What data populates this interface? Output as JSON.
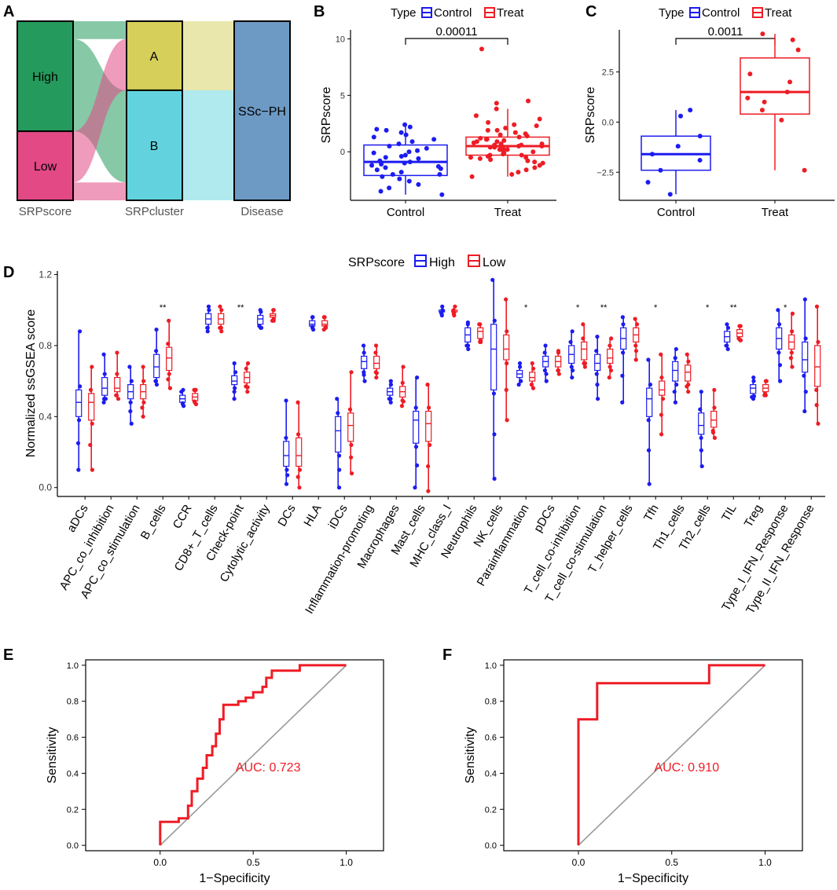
{
  "colors": {
    "blue": "#1c1cf0",
    "red": "#ee1c25",
    "high": "#249a5d",
    "low": "#e24985",
    "clusterA": "#d6cf5a",
    "clusterB": "#62d3de",
    "disease": "#6d9ac4",
    "axis": "#000000",
    "grey": "#9a9a9a",
    "label_grey": "#555555"
  },
  "chart_data": [
    {
      "panel": "A",
      "type": "alluvial",
      "axes": [
        "SRPscore",
        "SRPcluster",
        "Disease"
      ],
      "strata": {
        "SRPscore": [
          {
            "name": "High",
            "count": 43
          },
          {
            "name": "Low",
            "count": 27
          }
        ],
        "SRPcluster": [
          {
            "name": "A",
            "count": 27
          },
          {
            "name": "B",
            "count": 43
          }
        ],
        "Disease": [
          {
            "name": "SSc−PH",
            "count": 70
          }
        ]
      },
      "flows": [
        {
          "from": "High",
          "to": "A",
          "value": 7
        },
        {
          "from": "High",
          "to": "B",
          "value": 36
        },
        {
          "from": "Low",
          "to": "A",
          "value": 20
        },
        {
          "from": "Low",
          "to": "B",
          "value": 7
        }
      ]
    },
    {
      "panel": "B",
      "type": "boxplot",
      "legend_title": "Type",
      "groups": [
        "Control",
        "Treat"
      ],
      "ylabel": "SRPscore",
      "ylim": [
        -4.3,
        10.8
      ],
      "yticks": [
        0,
        5,
        10
      ],
      "pvalue": "0.00011",
      "boxes": [
        {
          "group": "Control",
          "min": -3.8,
          "q1": -2.1,
          "median": -0.9,
          "q3": 0.6,
          "max": 2.4
        },
        {
          "group": "Treat",
          "min": -2.2,
          "q1": -0.3,
          "median": 0.5,
          "q3": 1.3,
          "max": 3.8
        }
      ],
      "points": {
        "Control": [
          2.4,
          2.2,
          2.0,
          1.9,
          1.7,
          1.5,
          1.3,
          1.1,
          0.9,
          0.7,
          0.5,
          0.3,
          0.1,
          -0.1,
          -0.3,
          -0.5,
          -0.6,
          -0.8,
          -0.9,
          -1.0,
          -1.1,
          -1.2,
          -1.3,
          -1.5,
          -1.6,
          -1.8,
          -2.0,
          -2.2,
          -2.4,
          -2.6,
          -2.9,
          -3.2,
          -3.5,
          -3.8,
          -0.4,
          -1.4,
          0.0,
          -2.0
        ],
        "Treat": [
          9.1,
          4.5,
          4.3,
          3.8,
          3.2,
          2.9,
          2.6,
          2.3,
          2.1,
          1.9,
          1.7,
          1.5,
          1.4,
          1.3,
          1.2,
          1.1,
          1.0,
          0.9,
          0.8,
          0.7,
          0.6,
          0.5,
          0.5,
          0.4,
          0.3,
          0.2,
          0.1,
          0.0,
          -0.1,
          -0.2,
          -0.3,
          -0.4,
          -0.5,
          -0.6,
          -0.7,
          -0.8,
          -0.9,
          -1.0,
          -1.2,
          -1.4,
          -1.6,
          -1.8,
          -2.0,
          -2.2,
          0.6,
          0.9,
          1.1,
          0.2,
          -0.3,
          1.6,
          0.4,
          0.7,
          -0.5,
          1.9,
          2.4
        ]
      }
    },
    {
      "panel": "C",
      "type": "boxplot",
      "legend_title": "Type",
      "groups": [
        "Control",
        "Treat"
      ],
      "ylabel": "SRPscore",
      "ylim": [
        -3.9,
        4.6
      ],
      "yticks": [
        -2.5,
        0.0,
        2.5
      ],
      "yticklabels": [
        "−2.5",
        "0.0",
        "2.5"
      ],
      "pvalue": "0.0011",
      "boxes": [
        {
          "group": "Control",
          "min": -3.6,
          "q1": -2.4,
          "median": -1.6,
          "q3": -0.7,
          "max": 0.6
        },
        {
          "group": "Treat",
          "min": -2.4,
          "q1": 0.4,
          "median": 1.5,
          "q3": 3.2,
          "max": 4.4
        }
      ],
      "points": {
        "Control": [
          0.6,
          0.3,
          -0.7,
          -1.2,
          -1.6,
          -1.9,
          -2.4,
          -3.0,
          -3.6
        ],
        "Treat": [
          4.4,
          4.1,
          3.6,
          2.4,
          2.0,
          1.5,
          1.2,
          1.0,
          0.6,
          0.1,
          -2.4
        ]
      }
    },
    {
      "panel": "D",
      "type": "boxplot",
      "legend_title": "SRPscore",
      "legend": [
        "High",
        "Low"
      ],
      "ylabel": "Normalized ssGSEA score",
      "ylim": [
        -0.05,
        1.22
      ],
      "yticks": [
        0.0,
        0.4,
        0.8,
        1.2
      ],
      "yticklabels": [
        "0.0",
        "0.4",
        "0.8",
        "1.2"
      ],
      "categories": [
        "aDCs",
        "APC_co_inhibition",
        "APC_co_stimulation",
        "B_cells",
        "CCR",
        "CD8+_T_cells",
        "Check-point",
        "Cytolytic_activity",
        "DCs",
        "HLA",
        "iDCs",
        "Inflammation-promoting",
        "Macrophages",
        "Mast_cells",
        "MHC_class_I",
        "Neutrophils",
        "NK_cells",
        "Parainflammation",
        "pDCs",
        "T_cell_co-inhibition",
        "T_cell_co-stimulation",
        "T_helper_cells",
        "Tfh",
        "Th1_cells",
        "Th2_cells",
        "TIL",
        "Treg",
        "Type_I_IFN_Response",
        "Type_II_IFN_Response"
      ],
      "significance": [
        "",
        "",
        "",
        "**",
        "",
        "",
        "**",
        "",
        "",
        "",
        "",
        "",
        "",
        "",
        "",
        "",
        "",
        "*",
        "",
        "*",
        "**",
        "",
        "*",
        "",
        "*",
        "**",
        "",
        "*",
        ""
      ],
      "high": [
        [
          0.1,
          0.4,
          0.48,
          0.55,
          0.88
        ],
        [
          0.48,
          0.52,
          0.56,
          0.62,
          0.75
        ],
        [
          0.36,
          0.5,
          0.54,
          0.58,
          0.68
        ],
        [
          0.58,
          0.62,
          0.68,
          0.75,
          0.89
        ],
        [
          0.47,
          0.48,
          0.5,
          0.52,
          0.55
        ],
        [
          0.88,
          0.92,
          0.95,
          0.98,
          1.02
        ],
        [
          0.5,
          0.58,
          0.6,
          0.63,
          0.7
        ],
        [
          0.9,
          0.92,
          0.95,
          0.97,
          1.0
        ],
        [
          0.02,
          0.12,
          0.18,
          0.26,
          0.49
        ],
        [
          0.9,
          0.91,
          0.92,
          0.94,
          0.96
        ],
        [
          0.0,
          0.2,
          0.32,
          0.4,
          0.5
        ],
        [
          0.6,
          0.67,
          0.71,
          0.74,
          0.8
        ],
        [
          0.48,
          0.52,
          0.54,
          0.56,
          0.6
        ],
        [
          0.0,
          0.25,
          0.38,
          0.43,
          0.62
        ],
        [
          0.98,
          0.99,
          0.99,
          1.0,
          1.0
        ],
        [
          0.78,
          0.82,
          0.86,
          0.9,
          0.93
        ],
        [
          0.05,
          0.55,
          0.78,
          0.92,
          1.17
        ],
        [
          0.58,
          0.62,
          0.64,
          0.66,
          0.7
        ],
        [
          0.6,
          0.68,
          0.71,
          0.74,
          0.8
        ],
        [
          0.62,
          0.7,
          0.75,
          0.8,
          0.88
        ],
        [
          0.5,
          0.66,
          0.7,
          0.75,
          0.85
        ],
        [
          0.48,
          0.78,
          0.84,
          0.9,
          0.96
        ],
        [
          0.02,
          0.4,
          0.5,
          0.56,
          0.72
        ],
        [
          0.48,
          0.6,
          0.66,
          0.71,
          0.78
        ],
        [
          0.12,
          0.3,
          0.35,
          0.42,
          0.54
        ],
        [
          0.78,
          0.82,
          0.85,
          0.88,
          0.92
        ],
        [
          0.5,
          0.53,
          0.56,
          0.58,
          0.62
        ],
        [
          0.6,
          0.78,
          0.84,
          0.9,
          1.0
        ],
        [
          0.43,
          0.65,
          0.72,
          0.82,
          1.06
        ]
      ],
      "low": [
        [
          0.1,
          0.38,
          0.48,
          0.53,
          0.68
        ],
        [
          0.5,
          0.54,
          0.56,
          0.62,
          0.76
        ],
        [
          0.4,
          0.5,
          0.54,
          0.58,
          0.68
        ],
        [
          0.56,
          0.66,
          0.73,
          0.79,
          0.94
        ],
        [
          0.48,
          0.49,
          0.51,
          0.53,
          0.55
        ],
        [
          0.88,
          0.92,
          0.95,
          0.98,
          1.02
        ],
        [
          0.54,
          0.59,
          0.62,
          0.65,
          0.7
        ],
        [
          0.94,
          0.96,
          0.97,
          0.98,
          1.0
        ],
        [
          0.0,
          0.12,
          0.18,
          0.28,
          0.48
        ],
        [
          0.9,
          0.91,
          0.92,
          0.94,
          0.96
        ],
        [
          0.08,
          0.26,
          0.35,
          0.42,
          0.65
        ],
        [
          0.62,
          0.67,
          0.7,
          0.74,
          0.8
        ],
        [
          0.46,
          0.51,
          0.54,
          0.57,
          0.68
        ],
        [
          -0.02,
          0.26,
          0.36,
          0.43,
          0.58
        ],
        [
          0.98,
          0.99,
          0.99,
          1.0,
          1.0
        ],
        [
          0.82,
          0.84,
          0.88,
          0.9,
          0.92
        ],
        [
          0.38,
          0.72,
          0.78,
          0.86,
          1.06
        ],
        [
          0.56,
          0.6,
          0.62,
          0.65,
          0.7
        ],
        [
          0.64,
          0.68,
          0.71,
          0.74,
          0.77
        ],
        [
          0.68,
          0.72,
          0.78,
          0.82,
          0.92
        ],
        [
          0.62,
          0.7,
          0.73,
          0.78,
          0.84
        ],
        [
          0.72,
          0.82,
          0.86,
          0.9,
          0.95
        ],
        [
          0.3,
          0.52,
          0.55,
          0.6,
          0.75
        ],
        [
          0.54,
          0.6,
          0.65,
          0.69,
          0.75
        ],
        [
          0.28,
          0.34,
          0.38,
          0.43,
          0.55
        ],
        [
          0.83,
          0.85,
          0.87,
          0.89,
          0.91
        ],
        [
          0.52,
          0.54,
          0.56,
          0.58,
          0.6
        ],
        [
          0.68,
          0.78,
          0.82,
          0.86,
          0.98
        ],
        [
          0.36,
          0.57,
          0.68,
          0.8,
          1.02
        ]
      ]
    },
    {
      "panel": "E",
      "type": "roc",
      "xlabel": "1−Specificity",
      "ylabel": "Sensitivity",
      "xlim": [
        -0.4,
        1.2
      ],
      "ylim": [
        -0.03,
        1.03
      ],
      "xticks": [
        0.0,
        0.5,
        1.0
      ],
      "yticks": [
        0.0,
        0.2,
        0.4,
        0.6,
        0.8,
        1.0
      ],
      "auc_label": "AUC: 0.723",
      "curve": [
        [
          0,
          0
        ],
        [
          0,
          0.13
        ],
        [
          0.1,
          0.13
        ],
        [
          0.1,
          0.15
        ],
        [
          0.15,
          0.15
        ],
        [
          0.15,
          0.22
        ],
        [
          0.17,
          0.22
        ],
        [
          0.17,
          0.3
        ],
        [
          0.2,
          0.3
        ],
        [
          0.2,
          0.37
        ],
        [
          0.23,
          0.37
        ],
        [
          0.23,
          0.43
        ],
        [
          0.25,
          0.43
        ],
        [
          0.25,
          0.5
        ],
        [
          0.28,
          0.5
        ],
        [
          0.28,
          0.55
        ],
        [
          0.3,
          0.55
        ],
        [
          0.3,
          0.62
        ],
        [
          0.32,
          0.62
        ],
        [
          0.32,
          0.7
        ],
        [
          0.34,
          0.7
        ],
        [
          0.34,
          0.78
        ],
        [
          0.42,
          0.78
        ],
        [
          0.42,
          0.8
        ],
        [
          0.46,
          0.8
        ],
        [
          0.46,
          0.82
        ],
        [
          0.5,
          0.82
        ],
        [
          0.5,
          0.85
        ],
        [
          0.55,
          0.85
        ],
        [
          0.55,
          0.88
        ],
        [
          0.57,
          0.88
        ],
        [
          0.57,
          0.93
        ],
        [
          0.6,
          0.93
        ],
        [
          0.6,
          0.97
        ],
        [
          0.75,
          0.97
        ],
        [
          0.75,
          1.0
        ],
        [
          1.0,
          1.0
        ]
      ]
    },
    {
      "panel": "F",
      "type": "roc",
      "xlabel": "1−Specificity",
      "ylabel": "Sensitivity",
      "xlim": [
        -0.4,
        1.2
      ],
      "ylim": [
        -0.03,
        1.03
      ],
      "xticks": [
        0.0,
        0.5,
        1.0
      ],
      "yticks": [
        0.0,
        0.2,
        0.4,
        0.6,
        0.8,
        1.0
      ],
      "auc_label": "AUC: 0.910",
      "curve": [
        [
          0,
          0
        ],
        [
          0,
          0.7
        ],
        [
          0.1,
          0.7
        ],
        [
          0.1,
          0.9
        ],
        [
          0.7,
          0.9
        ],
        [
          0.7,
          1.0
        ],
        [
          1.0,
          1.0
        ]
      ]
    }
  ],
  "panel_letters": [
    "A",
    "B",
    "C",
    "D",
    "E",
    "F"
  ]
}
